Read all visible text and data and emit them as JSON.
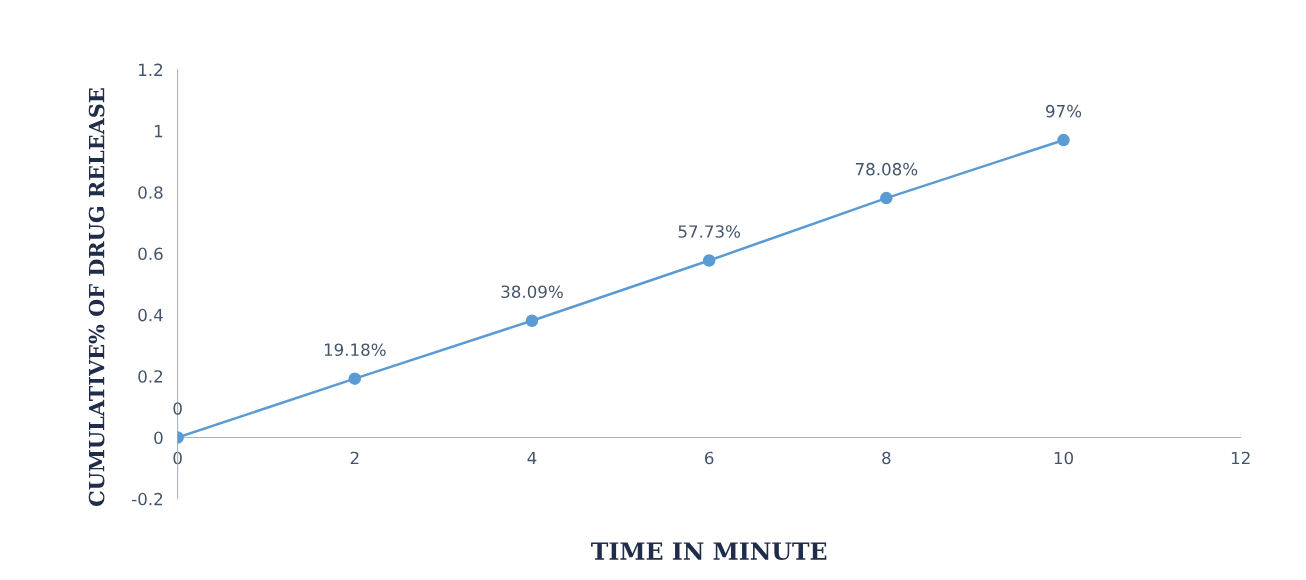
{
  "chart_data": {
    "type": "line",
    "xlabel": "TIME IN MINUTE",
    "ylabel": "CUMULATIVE% OF DRUG RELEASE",
    "x": [
      0,
      2,
      4,
      6,
      8,
      10
    ],
    "series": [
      {
        "color": "#5b9bd5",
        "values": [
          0,
          0.1918,
          0.3809,
          0.5773,
          0.7808,
          0.97
        ],
        "value_labels": [
          "0",
          "19.18%",
          "38.09%",
          "57.73%",
          "78.08%",
          "97%"
        ]
      }
    ],
    "xlim": [
      0,
      12
    ],
    "xticks": [
      0,
      2,
      4,
      6,
      8,
      10,
      12
    ],
    "ylim": [
      -0.2,
      1.2
    ],
    "yticks": [
      -0.2,
      0,
      0.2,
      0.4,
      0.6,
      0.8,
      1,
      1.2
    ],
    "grid": false,
    "legend": false,
    "marker": "circle",
    "line_style": "solid"
  }
}
